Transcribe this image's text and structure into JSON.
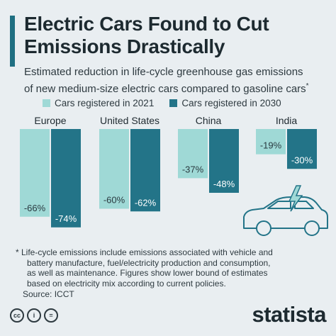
{
  "header": {
    "title_line1": "Electric Cars Found to Cut",
    "title_line2": "Emissions Drastically",
    "subtitle_line1": "Estimated reduction in life-cycle greenhouse gas emissions",
    "subtitle_line2": "of new medium-size electric cars compared to gasoline cars",
    "subtitle_mark": "*"
  },
  "chart_data": {
    "type": "bar",
    "categories": [
      "Europe",
      "United States",
      "China",
      "India"
    ],
    "series": [
      {
        "name": "Cars registered in 2021",
        "values": [
          -66,
          -60,
          -37,
          -19
        ],
        "color": "#9fd9d6"
      },
      {
        "name": "Cars registered in 2030",
        "values": [
          -74,
          -62,
          -48,
          -30
        ],
        "color": "#237488"
      }
    ],
    "value_suffix": "%",
    "ylim": [
      -80,
      0
    ],
    "legend_position": "top"
  },
  "footnote": {
    "lines": [
      "* Life-cycle emissions include emissions associated with vehicle and",
      "battery manufacture, fuel/electricity production and consumption,",
      "as well as maintenance. Figures show lower bound of estimates",
      "based on electricity mix according to current policies."
    ]
  },
  "source": "Source: ICCT",
  "license_icons": [
    "cc",
    "i",
    "="
  ],
  "brand": "statista",
  "illustration": "electric-car-with-lightning-bolt-icon"
}
